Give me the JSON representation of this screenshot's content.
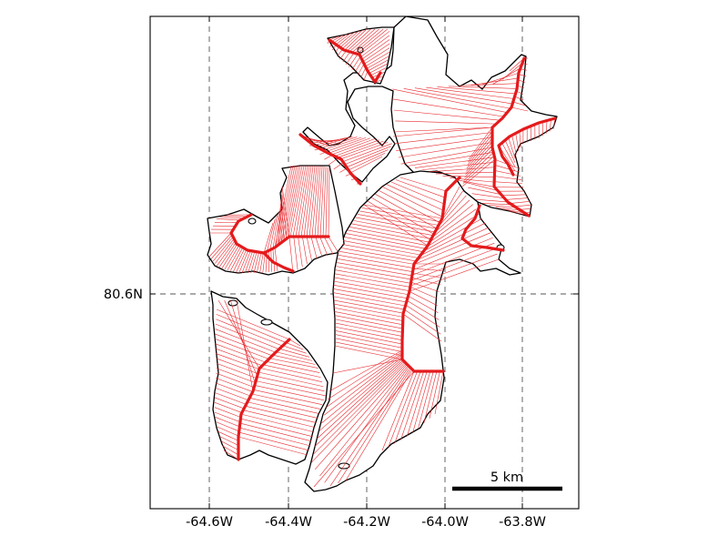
{
  "map": {
    "x_ticks": [
      "-64.6W",
      "-64.4W",
      "-64.2W",
      "-64.0W",
      "-63.8W"
    ],
    "y_ticks": [
      "80.6N"
    ],
    "scale_bar": {
      "label": "5 km",
      "length_km": 5
    },
    "grid": true,
    "colors": {
      "flowlines": "#e8282d",
      "centerlines": "#e41a1c",
      "outline": "#000000",
      "grid": "#555555"
    }
  }
}
